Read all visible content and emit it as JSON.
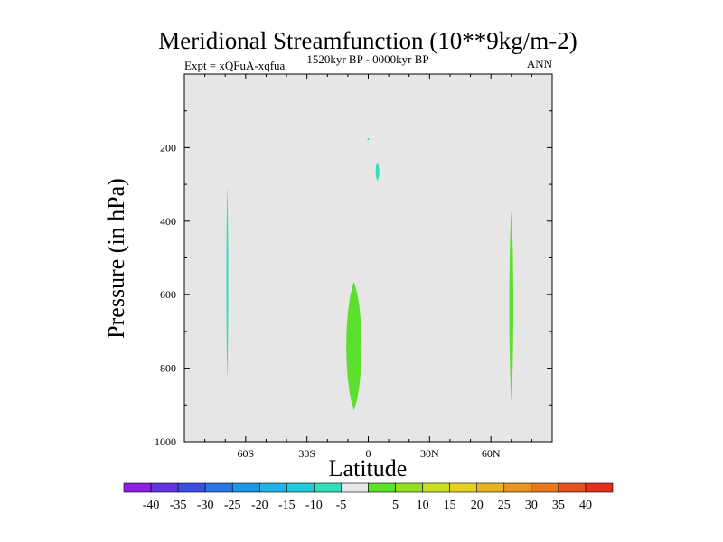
{
  "chart_data": {
    "type": "heatmap",
    "title": "Meridional Streamfunction (10**9kg/m-2)",
    "left_label": "Expt = xQFuA-xqfua",
    "center_label": "1520kyr BP - 0000kyr BP",
    "right_label": "ANN",
    "xlabel": "Latitude",
    "ylabel": "Pressure (in hPa)",
    "xlim": [
      -90,
      90
    ],
    "ylim": [
      1000,
      0
    ],
    "x_ticks": [
      {
        "value": -60,
        "label": "60S"
      },
      {
        "value": -30,
        "label": "30S"
      },
      {
        "value": 0,
        "label": "0"
      },
      {
        "value": 30,
        "label": "30N"
      },
      {
        "value": 60,
        "label": "60N"
      }
    ],
    "y_ticks": [
      {
        "value": 200,
        "label": "200"
      },
      {
        "value": 400,
        "label": "400"
      },
      {
        "value": 600,
        "label": "600"
      },
      {
        "value": 800,
        "label": "800"
      },
      {
        "value": 1000,
        "label": "1000"
      }
    ],
    "background_color": "#e6e6e6",
    "regions": [
      {
        "name": "negative-region-upper-dot",
        "level": -5,
        "color": "#2ee0b8",
        "lat": 0,
        "p_top": 174,
        "p_bottom": 180,
        "half_width": 0.6
      },
      {
        "name": "negative-region-upper",
        "level": -5,
        "color": "#2ee0b8",
        "lat": 4.5,
        "p_top": 240,
        "p_bottom": 290,
        "half_width": 1.2
      },
      {
        "name": "negative-region-sh",
        "level": -5,
        "color": "#2ee0b8",
        "lat": -69,
        "p_top": 305,
        "p_bottom": 830,
        "half_width": 0.6
      },
      {
        "name": "positive-region-tropics",
        "level": 5,
        "color": "#5ce02e",
        "lat": -7,
        "p_top": 565,
        "p_bottom": 915,
        "half_width": 5
      },
      {
        "name": "positive-region-nh",
        "level": 5,
        "color": "#5ce02e",
        "lat": 70,
        "p_top": 370,
        "p_bottom": 890,
        "half_width": 1.3
      }
    ],
    "colorbar": {
      "colors": [
        "#8c1ee6",
        "#6432e6",
        "#3c4ee6",
        "#2a78e6",
        "#1e96e6",
        "#1eb4e6",
        "#1eccd8",
        "#2ee0b8",
        "#e6e6e6",
        "#5ce02e",
        "#96e01e",
        "#c8e01e",
        "#e6d21e",
        "#e6b41e",
        "#e6961e",
        "#e6781e",
        "#e6501e",
        "#e62e1e"
      ],
      "labels": [
        "-40",
        "-35",
        "-30",
        "-25",
        "-20",
        "-15",
        "-10",
        "-5",
        "5",
        "10",
        "15",
        "20",
        "25",
        "30",
        "35",
        "40"
      ]
    }
  }
}
